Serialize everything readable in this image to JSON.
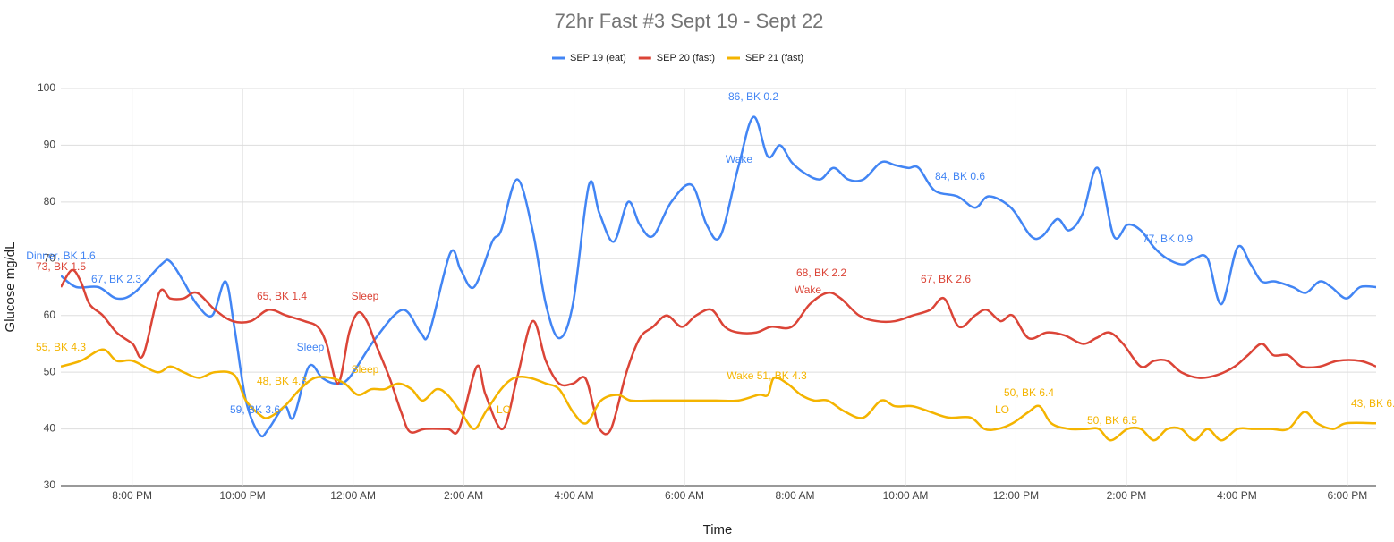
{
  "chart_data": {
    "type": "line",
    "title": "72hr Fast #3 Sept 19 - Sept 22",
    "x_label": "Time",
    "y_label": "Glucose mg/dL",
    "xlim": [
      0.71,
      24.52
    ],
    "ylim": [
      30,
      100
    ],
    "yticks": [
      30,
      40,
      50,
      60,
      70,
      80,
      90,
      100
    ],
    "xticks": [
      {
        "value": 2,
        "label": "8:00 PM"
      },
      {
        "value": 4,
        "label": "10:00 PM"
      },
      {
        "value": 6,
        "label": "12:00 AM"
      },
      {
        "value": 8,
        "label": "2:00 AM"
      },
      {
        "value": 10,
        "label": "4:00 AM"
      },
      {
        "value": 12,
        "label": "6:00 AM"
      },
      {
        "value": 14,
        "label": "8:00 AM"
      },
      {
        "value": 16,
        "label": "10:00 AM"
      },
      {
        "value": 18,
        "label": "12:00 PM"
      },
      {
        "value": 20,
        "label": "2:00 PM"
      },
      {
        "value": 22,
        "label": "4:00 PM"
      },
      {
        "value": 24,
        "label": "6:00 PM"
      }
    ],
    "grid": true,
    "legend": "top",
    "series": [
      {
        "name": "SEP 19 (eat)",
        "color": "#4285f4",
        "x": [
          0.71,
          0.99,
          1.39,
          1.72,
          2.04,
          2.53,
          2.69,
          2.93,
          3.17,
          3.45,
          3.69,
          3.85,
          4.06,
          4.31,
          4.47,
          4.76,
          4.92,
          5.2,
          5.44,
          5.68,
          5.93,
          6.41,
          6.9,
          7.22,
          7.38,
          7.76,
          7.95,
          8.19,
          8.52,
          8.68,
          8.97,
          9.25,
          9.49,
          9.73,
          9.98,
          10.27,
          10.46,
          10.72,
          10.98,
          11.19,
          11.43,
          11.76,
          12.13,
          12.4,
          12.65,
          12.97,
          13.25,
          13.51,
          13.73,
          13.94,
          14.19,
          14.46,
          14.7,
          14.96,
          15.24,
          15.56,
          15.81,
          16.05,
          16.24,
          16.53,
          16.94,
          17.26,
          17.51,
          17.91,
          18.27,
          18.48,
          18.75,
          18.96,
          19.21,
          19.48,
          19.77,
          20.02,
          20.26,
          20.5,
          20.74,
          21.02,
          21.23,
          21.47,
          21.72,
          22.01,
          22.25,
          22.45,
          22.69,
          23.01,
          23.25,
          23.5,
          23.71,
          23.98,
          24.23,
          24.52
        ],
        "values": [
          67,
          65,
          65,
          63,
          64,
          69,
          69.5,
          66,
          62,
          60,
          66,
          58,
          45,
          39,
          40,
          44,
          42,
          51,
          49,
          48,
          49,
          56,
          61,
          57,
          57,
          71,
          68,
          65,
          73,
          75,
          84,
          75,
          62,
          56,
          62,
          83,
          78,
          73,
          80,
          76,
          74,
          80,
          83,
          76,
          74,
          86,
          95,
          88,
          90,
          87,
          85,
          84,
          86,
          84,
          84,
          87,
          86.5,
          86,
          86,
          82,
          81,
          79,
          81,
          79,
          74,
          74,
          77,
          75,
          78,
          86,
          74,
          76,
          75,
          72,
          70,
          69,
          70,
          70,
          62,
          72,
          69,
          66,
          66,
          65,
          64,
          66,
          65,
          63,
          65,
          65
        ],
        "annotations": [
          "Dinner, BK 1.6",
          "67, BK 2.3",
          "Sleep",
          "59, BK 3.6",
          "Wake",
          "86, BK 0.2",
          "84, BK 0.6",
          "77, BK 0.9"
        ]
      },
      {
        "name": "SEP 20 (fast)",
        "color": "#db4437",
        "x": [
          0.71,
          0.91,
          1.07,
          1.23,
          1.47,
          1.72,
          2.01,
          2.2,
          2.49,
          2.69,
          2.93,
          3.17,
          3.5,
          3.82,
          4.15,
          4.47,
          4.79,
          5.12,
          5.36,
          5.52,
          5.73,
          5.93,
          6.09,
          6.25,
          6.41,
          6.66,
          6.87,
          7.03,
          7.3,
          7.71,
          7.92,
          8.24,
          8.4,
          8.71,
          8.97,
          9.25,
          9.49,
          9.73,
          9.98,
          10.2,
          10.35,
          10.46,
          10.67,
          10.95,
          11.19,
          11.43,
          11.68,
          11.95,
          12.21,
          12.49,
          12.73,
          12.97,
          13.3,
          13.57,
          13.94,
          14.27,
          14.59,
          14.83,
          15.16,
          15.48,
          15.81,
          16.13,
          16.45,
          16.7,
          16.97,
          17.26,
          17.47,
          17.72,
          17.94,
          18.23,
          18.56,
          18.88,
          19.21,
          19.45,
          19.69,
          19.94,
          20.26,
          20.5,
          20.74,
          20.99,
          21.31,
          21.64,
          21.96,
          22.2,
          22.45,
          22.66,
          22.93,
          23.17,
          23.5,
          23.82,
          24.23,
          24.52
        ],
        "values": [
          65,
          68,
          66,
          62,
          60,
          57,
          55,
          53,
          64,
          63,
          63,
          64,
          61,
          59,
          59,
          61,
          60,
          59,
          58,
          55,
          48,
          57,
          60.5,
          59,
          55,
          49,
          43,
          39.5,
          40,
          40,
          40,
          51,
          46,
          40,
          49,
          59,
          52,
          48,
          48,
          49,
          44,
          40,
          40,
          50,
          56,
          58,
          60,
          58,
          60,
          61,
          58,
          57,
          57,
          58,
          58,
          62,
          64,
          63,
          60,
          59,
          59,
          60,
          61,
          63,
          58,
          60,
          61,
          59,
          60,
          56,
          57,
          56.5,
          55,
          56,
          57,
          55,
          51,
          52,
          52,
          50,
          49,
          49.5,
          51,
          53,
          55,
          53,
          53,
          51,
          51,
          52,
          52,
          51
        ],
        "annotations": [
          "73, BK 1.5",
          "65, BK 1.4",
          "Sleep",
          "68, BK 2.2",
          "Wake",
          "67, BK 2.6"
        ]
      },
      {
        "name": "SEP 21 (fast)",
        "color": "#f4b400",
        "x": [
          0.71,
          1.07,
          1.47,
          1.72,
          2.01,
          2.45,
          2.69,
          2.93,
          3.21,
          3.5,
          3.85,
          4.06,
          4.31,
          4.47,
          4.76,
          5.04,
          5.31,
          5.6,
          5.85,
          6.09,
          6.33,
          6.57,
          6.82,
          7.06,
          7.26,
          7.51,
          7.71,
          7.95,
          8.19,
          8.4,
          8.68,
          8.92,
          9.2,
          9.49,
          9.73,
          9.98,
          10.22,
          10.49,
          10.79,
          11.03,
          11.43,
          11.92,
          12.57,
          12.97,
          13.34,
          13.51,
          13.62,
          13.86,
          14.11,
          14.35,
          14.59,
          14.91,
          15.24,
          15.56,
          15.81,
          16.13,
          16.45,
          16.78,
          17.18,
          17.43,
          17.67,
          17.94,
          18.23,
          18.43,
          18.64,
          18.96,
          19.29,
          19.5,
          19.72,
          20.02,
          20.26,
          20.5,
          20.74,
          20.99,
          21.23,
          21.47,
          21.72,
          22.01,
          22.28,
          22.61,
          22.93,
          23.22,
          23.45,
          23.74,
          23.98,
          24.52
        ],
        "values": [
          51,
          52,
          54,
          52,
          52,
          50,
          51,
          50,
          49,
          50,
          49.5,
          45,
          42.5,
          42,
          44,
          47,
          49,
          49,
          48,
          46,
          47,
          47,
          48,
          47,
          45,
          47,
          46,
          43,
          40,
          43,
          47,
          49,
          49,
          48,
          47,
          43,
          41,
          45,
          46,
          45,
          45,
          45,
          45,
          45,
          46,
          46,
          49,
          48,
          46,
          45,
          45,
          43,
          42,
          45,
          44,
          44,
          43,
          42,
          42,
          40,
          40,
          41,
          43,
          44,
          41,
          40,
          40,
          40,
          38,
          40,
          40,
          38,
          40,
          40,
          38,
          40,
          38,
          40,
          40,
          40,
          40,
          43,
          41,
          40,
          41,
          41
        ],
        "annotations": [
          "55, BK 4.3",
          "48, BK 4.3",
          "Sleep",
          "LO",
          "Wake 51, BK 4.3",
          "50, BK 6.4",
          "LO",
          "50, BK 6.5",
          "43, BK 6."
        ]
      }
    ]
  }
}
